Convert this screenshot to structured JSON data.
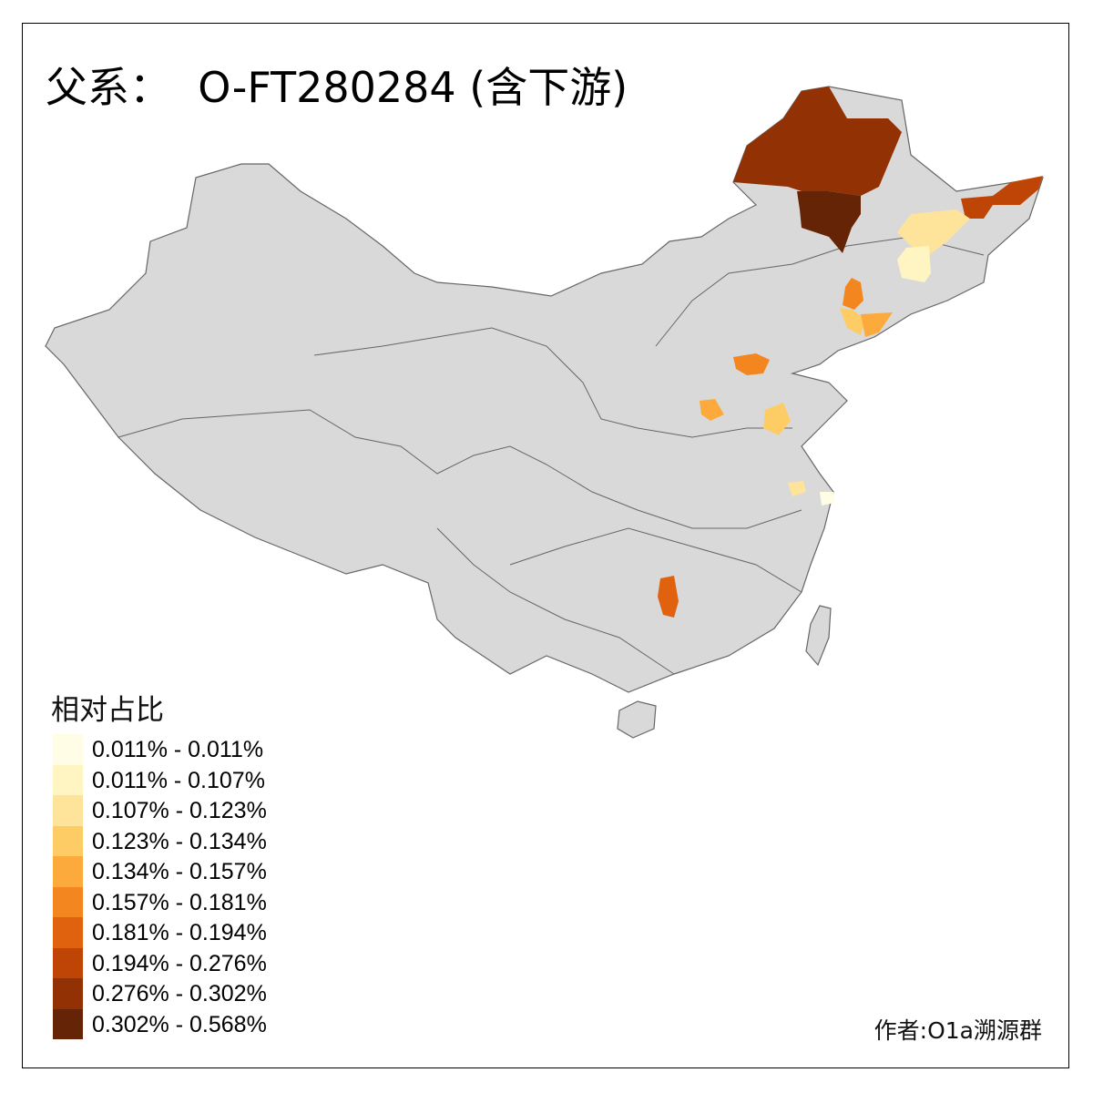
{
  "title": "父系：  O-FT280284 (含下游)",
  "legend": {
    "title": "相对占比",
    "items": [
      {
        "label": "0.011% - 0.011%",
        "color": "#FFFDE5"
      },
      {
        "label": "0.011% - 0.107%",
        "color": "#FFF5C2"
      },
      {
        "label": "0.107% - 0.123%",
        "color": "#FEE39B"
      },
      {
        "label": "0.123% - 0.134%",
        "color": "#FECC65"
      },
      {
        "label": "0.134% - 0.157%",
        "color": "#FDAA3C"
      },
      {
        "label": "0.157% - 0.181%",
        "color": "#F4861F"
      },
      {
        "label": "0.181% - 0.194%",
        "color": "#E0620F"
      },
      {
        "label": "0.194% - 0.276%",
        "color": "#BE4505"
      },
      {
        "label": "0.276% - 0.302%",
        "color": "#913104"
      },
      {
        "label": "0.302% - 0.568%",
        "color": "#652406"
      }
    ]
  },
  "map": {
    "base_color": "#D9D9D9",
    "border_color": "#666666"
  },
  "credit": "作者:O1a溯源群"
}
